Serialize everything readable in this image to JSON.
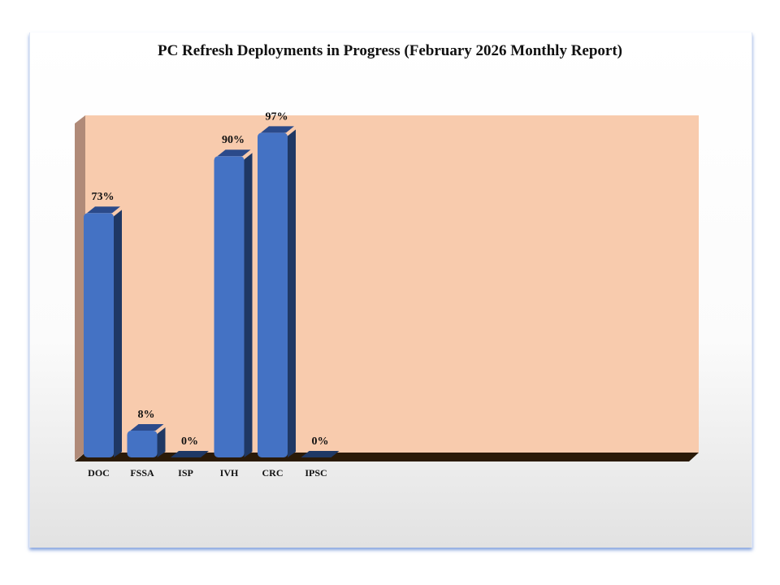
{
  "chart_data": {
    "type": "bar",
    "title": "PC Refresh Deployments in Progress (February 2026 Monthly Report)",
    "categories": [
      "DOC",
      "FSSA",
      "ISP",
      "IVH",
      "CRC",
      "IPSC"
    ],
    "values": [
      73,
      8,
      0,
      90,
      97,
      0
    ],
    "data_labels": [
      "73%",
      "8%",
      "0%",
      "90%",
      "97%",
      "0%"
    ],
    "xlabel": "",
    "ylabel": "",
    "ylim": [
      0,
      100
    ],
    "grid": false,
    "legend": "none",
    "style": "3d",
    "colors": {
      "bar": "#4472c4",
      "bar_side": "#1f3864",
      "back_wall": "#f8cbad",
      "side_wall": "#b08a78",
      "floor": "#2a1a08"
    }
  }
}
